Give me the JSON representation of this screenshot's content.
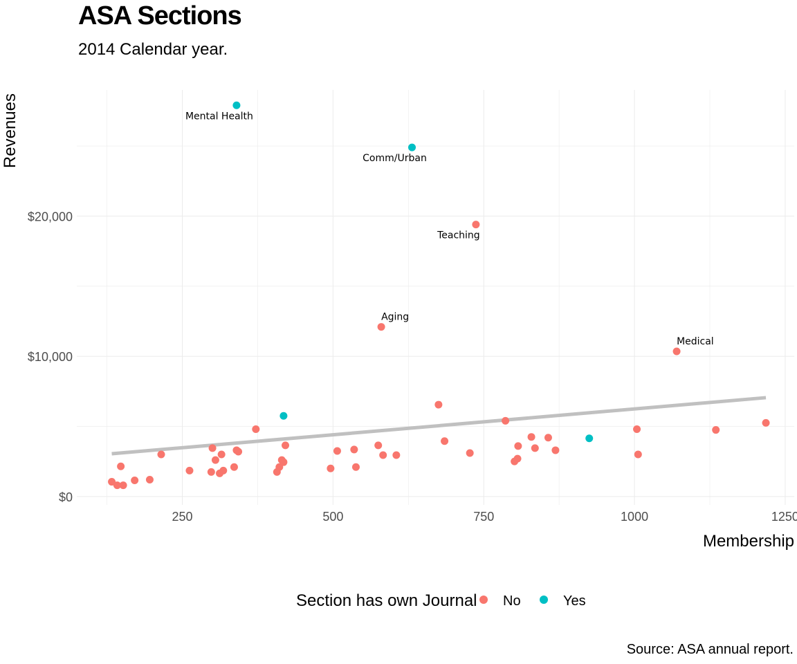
{
  "chart_data": {
    "type": "scatter",
    "title": "ASA Sections",
    "subtitle": "2014 Calendar year.",
    "xlabel": "Membership",
    "ylabel": "Revenues",
    "caption": "Source: ASA annual report.",
    "xlim": [
      75,
      1265
    ],
    "ylim": [
      -600,
      29000
    ],
    "x_ticks": [
      250,
      500,
      750,
      1000,
      1250
    ],
    "x_tick_labels": [
      "250",
      "500",
      "750",
      "1000",
      "1250"
    ],
    "y_ticks": [
      0,
      10000,
      20000
    ],
    "y_tick_labels": [
      "$0",
      "$10,000",
      "$20,000"
    ],
    "grid": true,
    "legend": {
      "title": "Section has own Journal",
      "position": "bottom",
      "entries": [
        {
          "name": "No",
          "color": "#F8766D"
        },
        {
          "name": "Yes",
          "color": "#00BFC4"
        }
      ]
    },
    "colors": {
      "No": "#F8766D",
      "Yes": "#00BFC4",
      "trend": "#c0c0c0"
    },
    "trend_line": {
      "x": [
        133,
        1218
      ],
      "y": [
        3050,
        7050
      ]
    },
    "series": [
      {
        "name": "No",
        "points": [
          [
            133,
            1050
          ],
          [
            142,
            800
          ],
          [
            148,
            2150
          ],
          [
            152,
            800
          ],
          [
            171,
            1150
          ],
          [
            196,
            1200
          ],
          [
            215,
            3000
          ],
          [
            262,
            1850
          ],
          [
            298,
            1750
          ],
          [
            300,
            3450
          ],
          [
            305,
            2600
          ],
          [
            312,
            1650
          ],
          [
            315,
            3000
          ],
          [
            318,
            1850
          ],
          [
            336,
            2100
          ],
          [
            340,
            3300
          ],
          [
            343,
            3200
          ],
          [
            372,
            4800
          ],
          [
            407,
            1750
          ],
          [
            411,
            2100
          ],
          [
            415,
            2600
          ],
          [
            418,
            2450
          ],
          [
            421,
            3650
          ],
          [
            496,
            2000
          ],
          [
            507,
            3250
          ],
          [
            535,
            3350
          ],
          [
            538,
            2100
          ],
          [
            575,
            3650
          ],
          [
            580,
            12100
          ],
          [
            583,
            2950
          ],
          [
            605,
            2950
          ],
          [
            675,
            6550
          ],
          [
            685,
            3950
          ],
          [
            727,
            3100
          ],
          [
            737,
            19400
          ],
          [
            786,
            5400
          ],
          [
            801,
            2500
          ],
          [
            806,
            2700
          ],
          [
            807,
            3600
          ],
          [
            829,
            4250
          ],
          [
            835,
            3450
          ],
          [
            857,
            4200
          ],
          [
            869,
            3300
          ],
          [
            1004,
            4800
          ],
          [
            1006,
            3000
          ],
          [
            1070,
            10350
          ],
          [
            1135,
            4750
          ],
          [
            1218,
            5250
          ]
        ]
      },
      {
        "name": "Yes",
        "points": [
          [
            340,
            27900
          ],
          [
            418,
            5750
          ],
          [
            631,
            24900
          ],
          [
            925,
            4150
          ]
        ]
      }
    ],
    "annotations": [
      {
        "label": "Mental Health",
        "x": 340,
        "y": 27900,
        "pos": "below"
      },
      {
        "label": "Comm/Urban",
        "x": 631,
        "y": 24900,
        "pos": "below"
      },
      {
        "label": "Teaching",
        "x": 737,
        "y": 19400,
        "pos": "below"
      },
      {
        "label": "Aging",
        "x": 580,
        "y": 12100,
        "pos": "above-right"
      },
      {
        "label": "Medical",
        "x": 1070,
        "y": 10350,
        "pos": "above-right"
      }
    ]
  }
}
